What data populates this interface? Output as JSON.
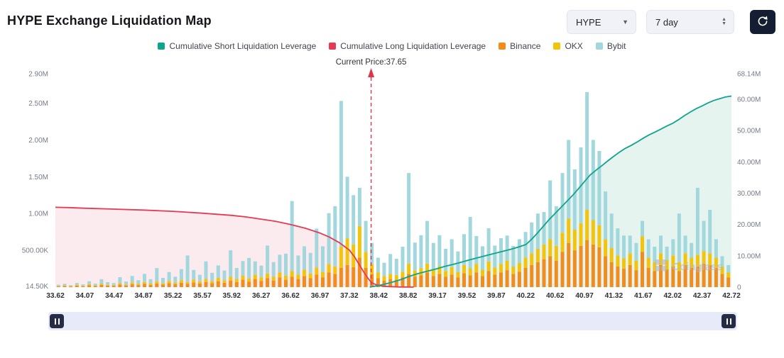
{
  "header": {
    "title": "HYPE Exchange Liquidation Map",
    "symbol_select": "HYPE",
    "range_select": "7 day"
  },
  "legend": [
    {
      "label": "Cumulative Short Liquidation Leverage",
      "color_key": "short"
    },
    {
      "label": "Cumulative Long Liquidation Leverage",
      "color_key": "long"
    },
    {
      "label": "Binance",
      "color_key": "binance"
    },
    {
      "label": "OKX",
      "color_key": "okx"
    },
    {
      "label": "Bybit",
      "color_key": "bybit"
    }
  ],
  "colors": {
    "short": "#0fa48c",
    "long": "#e63a54",
    "binance": "#f18d1f",
    "okx": "#f2c40c",
    "bybit": "#a2d8dd",
    "short_fill": "#e6f4f0",
    "long_fill": "#fcebee",
    "price_line": "#e03448",
    "slider_track": "#e7eaf8",
    "slider_handle": "#272c45",
    "refresh_button": "#141e33"
  },
  "watermark": "Coinglass",
  "chart_data": {
    "type": "bar",
    "subtype": "stacked bars + dual cumulative lines",
    "title": "HYPE Exchange Liquidation Map",
    "left_axis": {
      "max": 2900000,
      "ticks": [
        {
          "label": "14.50K",
          "value": 14500
        },
        {
          "label": "500.00K",
          "value": 500000
        },
        {
          "label": "1.00M",
          "value": 1000000
        },
        {
          "label": "1.50M",
          "value": 1500000
        },
        {
          "label": "2.00M",
          "value": 2000000
        },
        {
          "label": "2.50M",
          "value": 2500000
        },
        {
          "label": "2.90M",
          "value": 2900000
        }
      ]
    },
    "right_axis": {
      "max": 68140000,
      "ticks": [
        {
          "label": "0",
          "value": 0
        },
        {
          "label": "10.00M",
          "value": 10000000
        },
        {
          "label": "20.00M",
          "value": 20000000
        },
        {
          "label": "30.00M",
          "value": 30000000
        },
        {
          "label": "40.00M",
          "value": 40000000
        },
        {
          "label": "50.00M",
          "value": 50000000
        },
        {
          "label": "60.00M",
          "value": 60000000
        },
        {
          "label": "68.14M",
          "value": 68140000
        }
      ]
    },
    "x_labels": [
      "33.62",
      "34.07",
      "34.47",
      "34.87",
      "35.22",
      "35.57",
      "35.92",
      "36.27",
      "36.62",
      "36.97",
      "37.32",
      "38.42",
      "38.82",
      "39.17",
      "39.52",
      "39.87",
      "40.22",
      "40.62",
      "40.97",
      "41.32",
      "41.67",
      "42.02",
      "42.37",
      "42.72"
    ],
    "current_price": {
      "price": 37.65,
      "t": 0.467,
      "label": "Current Price:37.65"
    },
    "bars_unit": "thousands (K), stacked order: Binance, OKX, Bybit",
    "bars": [
      [
        10,
        8,
        15
      ],
      [
        15,
        10,
        20
      ],
      [
        8,
        6,
        12
      ],
      [
        20,
        12,
        25
      ],
      [
        12,
        8,
        18
      ],
      [
        25,
        15,
        40
      ],
      [
        15,
        10,
        22
      ],
      [
        30,
        18,
        60
      ],
      [
        20,
        12,
        35
      ],
      [
        18,
        10,
        28
      ],
      [
        35,
        20,
        80
      ],
      [
        22,
        14,
        40
      ],
      [
        40,
        22,
        90
      ],
      [
        28,
        16,
        50
      ],
      [
        45,
        25,
        110
      ],
      [
        30,
        18,
        60
      ],
      [
        50,
        28,
        180
      ],
      [
        35,
        20,
        70
      ],
      [
        55,
        30,
        120
      ],
      [
        40,
        22,
        80
      ],
      [
        60,
        35,
        150
      ],
      [
        45,
        25,
        360
      ],
      [
        65,
        38,
        130
      ],
      [
        50,
        28,
        90
      ],
      [
        70,
        40,
        240
      ],
      [
        55,
        30,
        110
      ],
      [
        80,
        45,
        170
      ],
      [
        60,
        35,
        130
      ],
      [
        90,
        50,
        360
      ],
      [
        70,
        40,
        150
      ],
      [
        100,
        55,
        200
      ],
      [
        75,
        42,
        280
      ],
      [
        110,
        60,
        180
      ],
      [
        85,
        48,
        160
      ],
      [
        120,
        65,
        380
      ],
      [
        90,
        50,
        200
      ],
      [
        130,
        70,
        240
      ],
      [
        100,
        55,
        300
      ],
      [
        140,
        80,
        950
      ],
      [
        110,
        60,
        260
      ],
      [
        150,
        85,
        320
      ],
      [
        120,
        65,
        280
      ],
      [
        170,
        95,
        530
      ],
      [
        130,
        75,
        350
      ],
      [
        200,
        115,
        690
      ],
      [
        180,
        100,
        820
      ],
      [
        260,
        290,
        1980
      ],
      [
        300,
        360,
        840
      ],
      [
        270,
        310,
        670
      ],
      [
        400,
        430,
        520
      ],
      [
        260,
        220,
        420
      ],
      [
        180,
        130,
        290
      ],
      [
        120,
        80,
        200
      ],
      [
        90,
        60,
        180
      ],
      [
        110,
        70,
        270
      ],
      [
        100,
        65,
        220
      ],
      [
        130,
        80,
        340
      ],
      [
        180,
        140,
        1230
      ],
      [
        140,
        85,
        380
      ],
      [
        160,
        95,
        450
      ],
      [
        200,
        120,
        580
      ],
      [
        150,
        90,
        360
      ],
      [
        180,
        105,
        420
      ],
      [
        140,
        80,
        300
      ],
      [
        170,
        100,
        380
      ],
      [
        130,
        75,
        280
      ],
      [
        190,
        110,
        420
      ],
      [
        160,
        95,
        700
      ],
      [
        200,
        115,
        380
      ],
      [
        150,
        85,
        320
      ],
      [
        220,
        130,
        450
      ],
      [
        170,
        95,
        300
      ],
      [
        200,
        115,
        350
      ],
      [
        230,
        130,
        340
      ],
      [
        180,
        100,
        280
      ],
      [
        210,
        120,
        320
      ],
      [
        260,
        140,
        350
      ],
      [
        300,
        160,
        420
      ],
      [
        340,
        180,
        480
      ],
      [
        380,
        200,
        440
      ],
      [
        420,
        230,
        800
      ],
      [
        360,
        200,
        540
      ],
      [
        480,
        260,
        810
      ],
      [
        600,
        330,
        1070
      ],
      [
        500,
        280,
        820
      ],
      [
        560,
        310,
        1030
      ],
      [
        640,
        410,
        1600
      ],
      [
        580,
        330,
        1090
      ],
      [
        540,
        300,
        1010
      ],
      [
        420,
        230,
        650
      ],
      [
        340,
        190,
        470
      ],
      [
        280,
        150,
        370
      ],
      [
        250,
        140,
        310
      ],
      [
        300,
        160,
        240
      ],
      [
        230,
        130,
        240
      ],
      [
        480,
        210,
        210
      ],
      [
        260,
        140,
        250
      ],
      [
        220,
        120,
        210
      ],
      [
        300,
        160,
        240
      ],
      [
        240,
        130,
        180
      ],
      [
        280,
        150,
        220
      ],
      [
        220,
        120,
        660
      ],
      [
        300,
        160,
        240
      ],
      [
        260,
        140,
        200
      ],
      [
        280,
        160,
        910
      ],
      [
        320,
        170,
        410
      ],
      [
        300,
        160,
        590
      ],
      [
        260,
        140,
        250
      ],
      [
        180,
        100,
        140
      ],
      [
        130,
        70,
        100
      ]
    ],
    "lines_unit": "millions (M), x as fraction of plot width",
    "long_line": [
      [
        0,
        25.5
      ],
      [
        0.02,
        25.4
      ],
      [
        0.043,
        25.2
      ],
      [
        0.087,
        24.9
      ],
      [
        0.13,
        24.6
      ],
      [
        0.174,
        24.2
      ],
      [
        0.217,
        23.6
      ],
      [
        0.261,
        22.9
      ],
      [
        0.283,
        22.4
      ],
      [
        0.304,
        21.7
      ],
      [
        0.326,
        21.0
      ],
      [
        0.348,
        20.0
      ],
      [
        0.37,
        18.8
      ],
      [
        0.391,
        17.3
      ],
      [
        0.405,
        16.0
      ],
      [
        0.42,
        14.2
      ],
      [
        0.435,
        11.8
      ],
      [
        0.443,
        9.5
      ],
      [
        0.45,
        7.0
      ],
      [
        0.457,
        4.5
      ],
      [
        0.463,
        2.6
      ],
      [
        0.468,
        1.4
      ],
      [
        0.475,
        0.7
      ],
      [
        0.483,
        0.35
      ],
      [
        0.495,
        0.15
      ],
      [
        0.51,
        0.05
      ],
      [
        0.53,
        0.0
      ]
    ],
    "short_line": [
      [
        0.465,
        0.0
      ],
      [
        0.478,
        0.5
      ],
      [
        0.49,
        1.1
      ],
      [
        0.5,
        1.7
      ],
      [
        0.511,
        2.4
      ],
      [
        0.522,
        3.3
      ],
      [
        0.533,
        4.1
      ],
      [
        0.543,
        4.7
      ],
      [
        0.554,
        5.3
      ],
      [
        0.565,
        5.9
      ],
      [
        0.576,
        6.6
      ],
      [
        0.587,
        7.2
      ],
      [
        0.598,
        7.8
      ],
      [
        0.609,
        8.5
      ],
      [
        0.62,
        9.1
      ],
      [
        0.63,
        9.7
      ],
      [
        0.641,
        10.3
      ],
      [
        0.652,
        10.9
      ],
      [
        0.663,
        11.5
      ],
      [
        0.674,
        12.1
      ],
      [
        0.685,
        12.8
      ],
      [
        0.696,
        13.6
      ],
      [
        0.704,
        15.2
      ],
      [
        0.712,
        17.0
      ],
      [
        0.72,
        19.0
      ],
      [
        0.73,
        21.5
      ],
      [
        0.739,
        23.5
      ],
      [
        0.748,
        25.5
      ],
      [
        0.757,
        27.5
      ],
      [
        0.766,
        29.5
      ],
      [
        0.774,
        31.5
      ],
      [
        0.783,
        33.8
      ],
      [
        0.791,
        35.8
      ],
      [
        0.8,
        37.4
      ],
      [
        0.809,
        38.9
      ],
      [
        0.817,
        40.3
      ],
      [
        0.826,
        41.8
      ],
      [
        0.835,
        43.2
      ],
      [
        0.843,
        44.3
      ],
      [
        0.852,
        45.3
      ],
      [
        0.861,
        46.4
      ],
      [
        0.87,
        47.6
      ],
      [
        0.878,
        48.6
      ],
      [
        0.887,
        49.5
      ],
      [
        0.896,
        50.5
      ],
      [
        0.904,
        51.4
      ],
      [
        0.913,
        52.3
      ],
      [
        0.922,
        53.5
      ],
      [
        0.93,
        54.7
      ],
      [
        0.939,
        55.9
      ],
      [
        0.948,
        57.0
      ],
      [
        0.957,
        57.9
      ],
      [
        0.965,
        58.8
      ],
      [
        0.974,
        59.6
      ],
      [
        0.983,
        60.2
      ],
      [
        0.991,
        60.7
      ],
      [
        1,
        61.0
      ]
    ]
  }
}
